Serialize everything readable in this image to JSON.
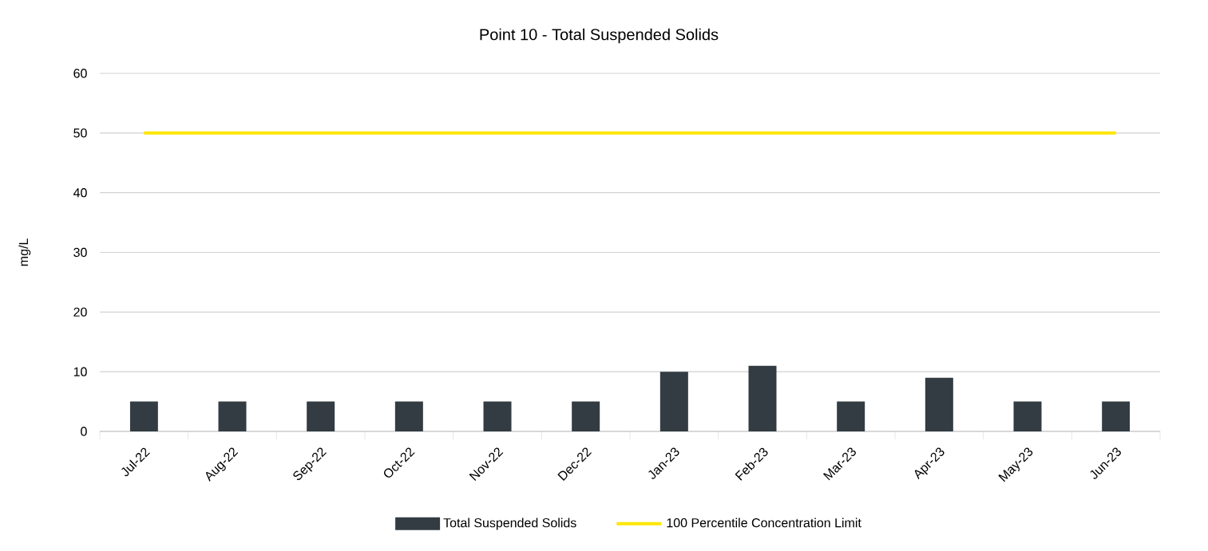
{
  "chart_data": {
    "type": "bar",
    "title": "Point 10 - Total Suspended Solids",
    "ylabel": "mg/L",
    "categories": [
      "Jul-22",
      "Aug-22",
      "Sep-22",
      "Oct-22",
      "Nov-22",
      "Dec-22",
      "Jan-23",
      "Feb-23",
      "Mar-23",
      "Apr-23",
      "May-23",
      "Jun-23"
    ],
    "series": [
      {
        "name": "Total Suspended Solids",
        "color": "#323c42",
        "values": [
          5,
          5,
          5,
          5,
          5,
          5,
          10,
          11,
          5,
          9,
          5,
          5
        ]
      },
      {
        "name": "100 Percentile Concentration Limit",
        "type": "line",
        "color": "#ffe600",
        "values": [
          50,
          50,
          50,
          50,
          50,
          50,
          50,
          50,
          50,
          50,
          50,
          50
        ]
      }
    ],
    "ylim": [
      0,
      60
    ],
    "yticks": [
      0,
      10,
      20,
      30,
      40,
      50,
      60
    ],
    "grid": "y",
    "legend": "bottom"
  }
}
